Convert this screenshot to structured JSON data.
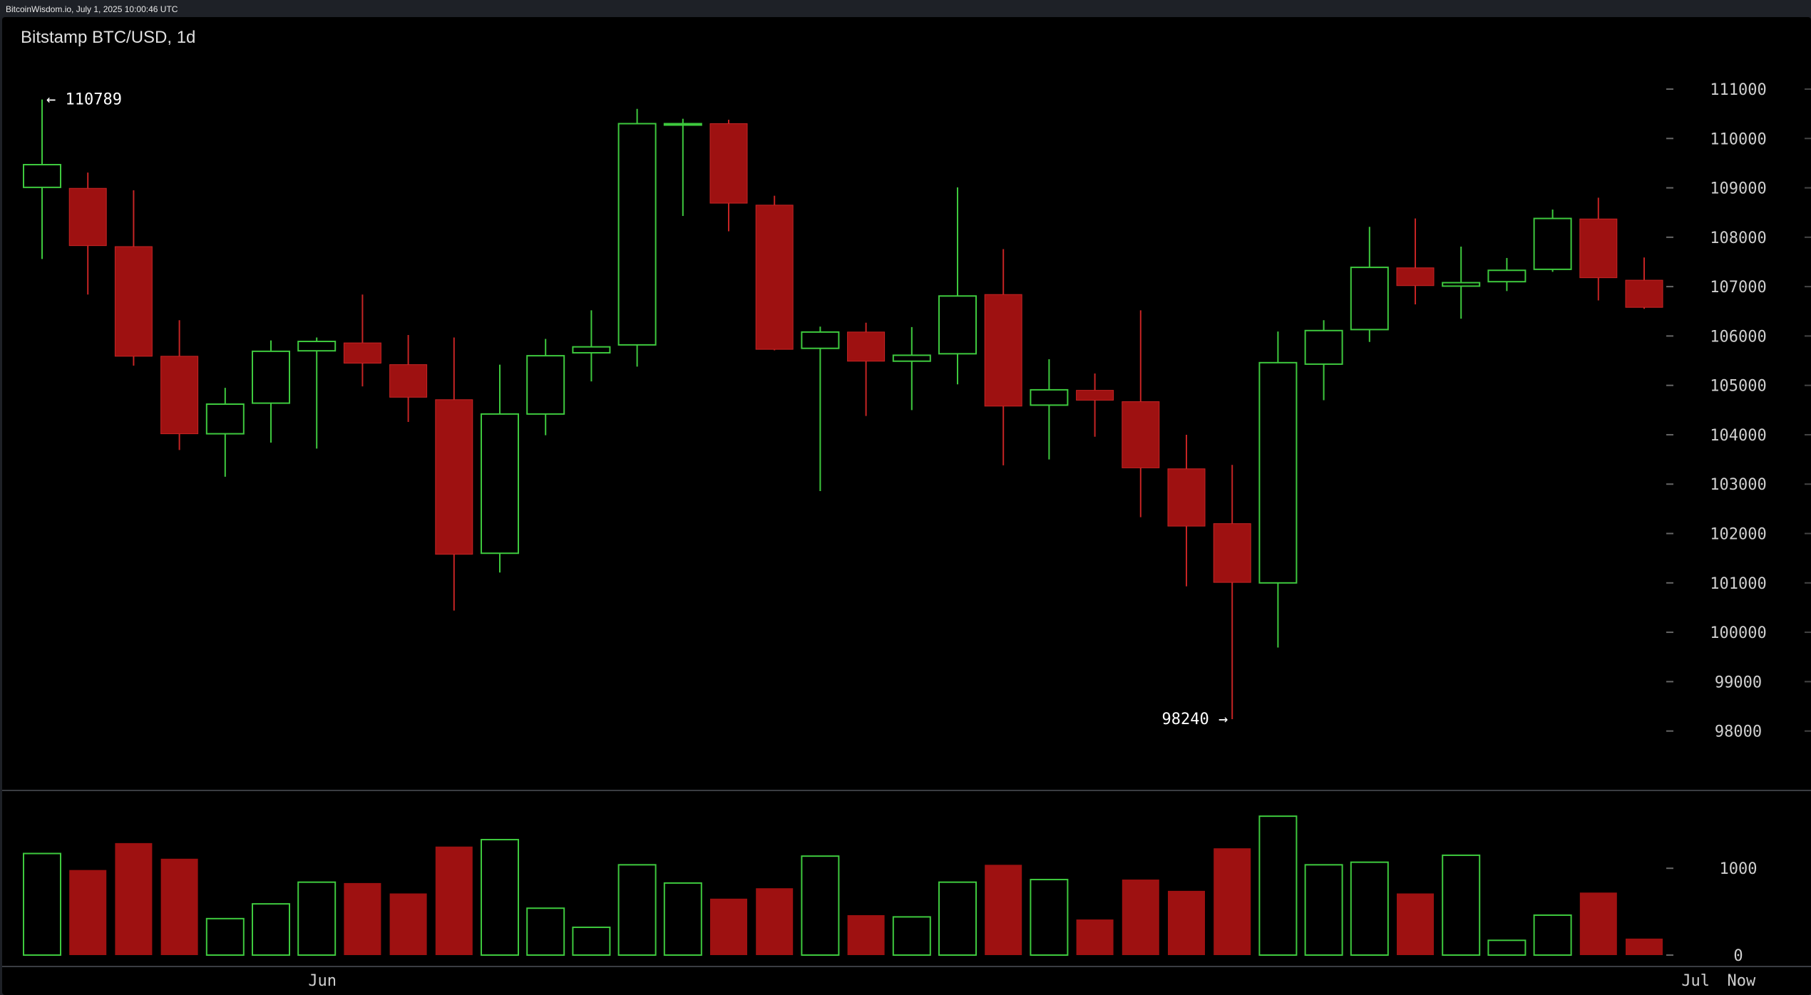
{
  "header": {
    "source_line": "BitcoinWisdom.io, July 1, 2025 10:00:46 UTC"
  },
  "colors": {
    "up": "#3ec93e",
    "down": "#9e1111",
    "down_line": "#c62424",
    "axis_text": "#cfcfcf",
    "background": "#000000",
    "separator": "#3a3d42"
  },
  "chart_data": {
    "type": "candlestick",
    "title": "Bitstamp BTC/USD, 1d",
    "price_axis": {
      "ticks": [
        "111000",
        "110000",
        "109000",
        "108000",
        "107000",
        "106000",
        "105000",
        "104000",
        "103000",
        "102000",
        "101000",
        "100000",
        "99000",
        "98000"
      ],
      "tick_values": [
        111000,
        110000,
        109000,
        108000,
        107000,
        106000,
        105000,
        104000,
        103000,
        102000,
        101000,
        100000,
        99000,
        98000
      ]
    },
    "volume_axis": {
      "ticks": [
        "1000",
        "0"
      ],
      "tick_values": [
        1000,
        0
      ]
    },
    "x_axis_labels": [
      {
        "label": "Jun",
        "index": 6
      },
      {
        "label": "Jul",
        "index": 36
      },
      {
        "label": "Now",
        "index": 37
      }
    ],
    "annotations": {
      "high": {
        "text": "← 110789",
        "value": 110789,
        "index": 0
      },
      "low": {
        "text": "98240 →",
        "value": 98240,
        "index": 26
      }
    },
    "candles": [
      {
        "o": 109010,
        "h": 110789,
        "l": 107560,
        "c": 109470
      },
      {
        "o": 108990,
        "h": 109310,
        "l": 106840,
        "c": 107830
      },
      {
        "o": 107810,
        "h": 108950,
        "l": 105400,
        "c": 105590
      },
      {
        "o": 105590,
        "h": 106320,
        "l": 103690,
        "c": 104020
      },
      {
        "o": 104020,
        "h": 104950,
        "l": 103150,
        "c": 104620
      },
      {
        "o": 104640,
        "h": 105910,
        "l": 103840,
        "c": 105690
      },
      {
        "o": 105700,
        "h": 105970,
        "l": 103720,
        "c": 105890
      },
      {
        "o": 105860,
        "h": 106840,
        "l": 104980,
        "c": 105450
      },
      {
        "o": 105420,
        "h": 106020,
        "l": 104260,
        "c": 104760
      },
      {
        "o": 104710,
        "h": 105970,
        "l": 100440,
        "c": 101580
      },
      {
        "o": 101600,
        "h": 105420,
        "l": 101210,
        "c": 104420
      },
      {
        "o": 104420,
        "h": 105940,
        "l": 103990,
        "c": 105600
      },
      {
        "o": 105660,
        "h": 106520,
        "l": 105080,
        "c": 105780
      },
      {
        "o": 105820,
        "h": 110600,
        "l": 105380,
        "c": 110300
      },
      {
        "o": 110300,
        "h": 110400,
        "l": 108430,
        "c": 110300
      },
      {
        "o": 110300,
        "h": 110380,
        "l": 108120,
        "c": 108690
      },
      {
        "o": 108650,
        "h": 108840,
        "l": 105710,
        "c": 105730
      },
      {
        "o": 105750,
        "h": 106190,
        "l": 102860,
        "c": 106080
      },
      {
        "o": 106080,
        "h": 106270,
        "l": 104380,
        "c": 105490
      },
      {
        "o": 105490,
        "h": 106180,
        "l": 104500,
        "c": 105610
      },
      {
        "o": 105640,
        "h": 109010,
        "l": 105020,
        "c": 106810
      },
      {
        "o": 106840,
        "h": 107760,
        "l": 103380,
        "c": 104580
      },
      {
        "o": 104600,
        "h": 105530,
        "l": 103500,
        "c": 104910
      },
      {
        "o": 104900,
        "h": 105240,
        "l": 103960,
        "c": 104700
      },
      {
        "o": 104670,
        "h": 106520,
        "l": 102330,
        "c": 103330
      },
      {
        "o": 103310,
        "h": 104000,
        "l": 100930,
        "c": 102150
      },
      {
        "o": 102200,
        "h": 103390,
        "l": 98240,
        "c": 101010
      },
      {
        "o": 101000,
        "h": 106090,
        "l": 99690,
        "c": 105460
      },
      {
        "o": 105430,
        "h": 106320,
        "l": 104700,
        "c": 106110
      },
      {
        "o": 106130,
        "h": 108210,
        "l": 105880,
        "c": 107390
      },
      {
        "o": 107380,
        "h": 108380,
        "l": 106640,
        "c": 107020
      },
      {
        "o": 107010,
        "h": 107810,
        "l": 106350,
        "c": 107080
      },
      {
        "o": 107100,
        "h": 107580,
        "l": 106910,
        "c": 107330
      },
      {
        "o": 107350,
        "h": 108560,
        "l": 107300,
        "c": 108380
      },
      {
        "o": 108370,
        "h": 108800,
        "l": 106720,
        "c": 107180
      },
      {
        "o": 107130,
        "h": 107590,
        "l": 106550,
        "c": 106580
      }
    ],
    "volumes": [
      1170,
      980,
      1290,
      1110,
      420,
      590,
      840,
      830,
      710,
      1250,
      1330,
      540,
      320,
      1040,
      830,
      650,
      770,
      1140,
      460,
      440,
      840,
      1040,
      870,
      410,
      870,
      740,
      1230,
      1600,
      1040,
      1070,
      710,
      1150,
      170,
      460,
      720,
      190
    ]
  }
}
